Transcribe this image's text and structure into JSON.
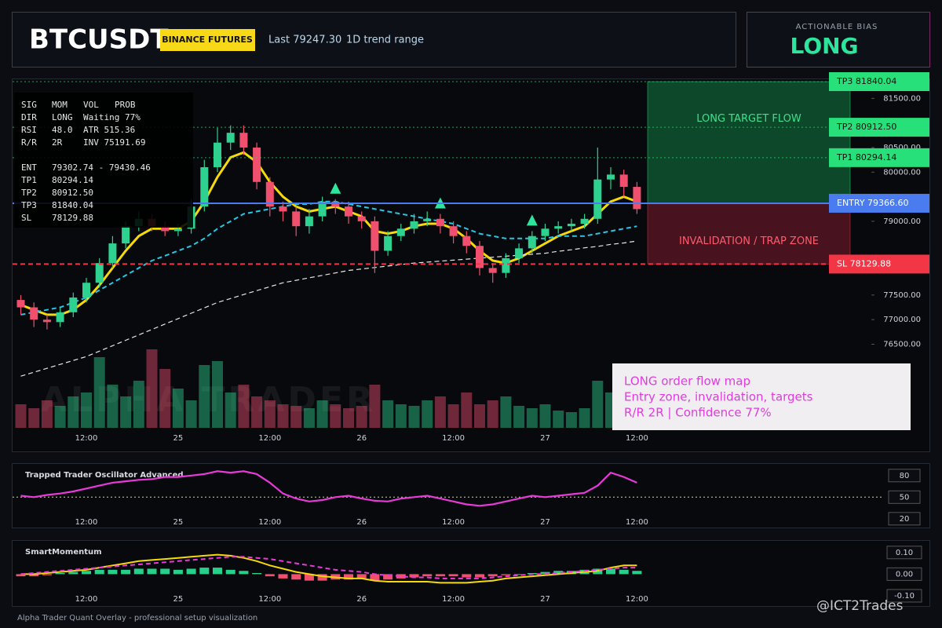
{
  "header": {
    "symbol": "BTCUSDT",
    "exchange": "BINANCE FUTURES",
    "last": "Last 79247.30",
    "range": "1D trend range",
    "bias_label": "ACTIONABLE BIAS",
    "bias": "LONG"
  },
  "info_box": {
    "rows": [
      [
        "SIG",
        "MOM",
        "VOL",
        "PROB"
      ],
      [
        "DIR",
        "LONG",
        "Waiting 77%"
      ],
      [
        "RSI",
        "48.0",
        "ATR 515.36"
      ],
      [
        "R/R",
        "2R",
        "INV 75191.69"
      ],
      [
        "ENT",
        "79302.74 - 79430.46"
      ],
      [
        "TP1",
        "80294.14"
      ],
      [
        "TP2",
        "80912.50"
      ],
      [
        "TP3",
        "81840.04"
      ],
      [
        "SL",
        "78129.88"
      ]
    ]
  },
  "note": {
    "lines": [
      "LONG order flow map",
      "Entry zone, invalidation, targets",
      "R/R 2R | Confidence 77%"
    ]
  },
  "footer": "Alpha Trader Quant Overlay - professional setup visualization",
  "credit": "@ICT2Trades",
  "chart_data": [
    {
      "type": "candlestick",
      "watermark": "ALPHA TRADER",
      "categories": [
        null,
        null,
        null,
        null,
        null,
        "12:00",
        null,
        null,
        null,
        null,
        null,
        null,
        "25",
        null,
        null,
        null,
        null,
        null,
        null,
        "12:00",
        null,
        null,
        null,
        null,
        null,
        null,
        "26",
        null,
        null,
        null,
        null,
        null,
        null,
        "12:00",
        null,
        null,
        null,
        null,
        null,
        null,
        "27",
        null,
        null,
        null,
        null,
        null,
        null,
        "12:00"
      ],
      "open": [
        77400,
        77250,
        77000,
        76950,
        77150,
        77450,
        77750,
        78150,
        78550,
        78900,
        79050,
        78900,
        78800,
        78850,
        79300,
        80100,
        80600,
        80800,
        80500,
        79800,
        79300,
        79200,
        78900,
        79100,
        79400,
        79300,
        79100,
        79000,
        78400,
        78700,
        78850,
        79000,
        79050,
        78900,
        78700,
        78500,
        78050,
        77950,
        78250,
        78450,
        78700,
        78850,
        78900,
        78950,
        79050,
        79850,
        79950,
        79700
      ],
      "high": [
        77500,
        77350,
        77100,
        77250,
        77550,
        77850,
        78250,
        78700,
        79000,
        79200,
        79150,
        79000,
        78950,
        79450,
        80250,
        80900,
        80950,
        80950,
        80600,
        79900,
        79400,
        79300,
        79250,
        79500,
        79450,
        79400,
        79200,
        79100,
        78800,
        78950,
        79150,
        79200,
        79150,
        79000,
        78800,
        78600,
        78150,
        78350,
        78550,
        78800,
        78950,
        79000,
        79050,
        79150,
        80500,
        80100,
        80050,
        79800
      ],
      "low": [
        77100,
        76850,
        76800,
        76850,
        77050,
        77350,
        77650,
        78050,
        78450,
        78800,
        78800,
        78700,
        78700,
        78750,
        79200,
        80000,
        80450,
        80350,
        79650,
        79100,
        79000,
        78700,
        78750,
        79000,
        79150,
        78950,
        78850,
        77950,
        78300,
        78600,
        78750,
        78900,
        78750,
        78550,
        78350,
        77900,
        77750,
        77850,
        78150,
        78350,
        78600,
        78750,
        78800,
        78850,
        78950,
        79650,
        79500,
        79150
      ],
      "close": [
        77250,
        77000,
        76950,
        77150,
        77450,
        77750,
        78150,
        78550,
        78900,
        79050,
        78900,
        78800,
        78850,
        79300,
        80100,
        80600,
        80800,
        80500,
        79800,
        79300,
        79200,
        78900,
        79100,
        79400,
        79300,
        79100,
        79000,
        78400,
        78700,
        78850,
        79000,
        79050,
        78900,
        78700,
        78500,
        78050,
        77950,
        78250,
        78450,
        78700,
        78850,
        78900,
        78950,
        79050,
        79850,
        79950,
        79700,
        79247.3
      ],
      "volume": [
        30,
        25,
        35,
        28,
        40,
        45,
        90,
        55,
        40,
        60,
        100,
        75,
        50,
        35,
        80,
        85,
        45,
        55,
        40,
        35,
        30,
        28,
        25,
        35,
        30,
        25,
        28,
        55,
        35,
        30,
        28,
        35,
        40,
        30,
        45,
        30,
        35,
        40,
        28,
        25,
        30,
        22,
        20,
        25,
        60,
        45,
        35,
        40
      ],
      "up_color": "#2ed18f",
      "down_color": "#f0506e",
      "lines": [
        {
          "color": "#f5d90a",
          "width": 3,
          "style": "solid",
          "values": [
            77300,
            77200,
            77100,
            77100,
            77200,
            77400,
            77700,
            78050,
            78400,
            78700,
            78850,
            78850,
            78850,
            79000,
            79400,
            79900,
            80300,
            80400,
            80200,
            79800,
            79500,
            79300,
            79200,
            79250,
            79300,
            79200,
            79100,
            78800,
            78750,
            78800,
            78900,
            78950,
            78950,
            78850,
            78650,
            78400,
            78200,
            78150,
            78250,
            78400,
            78550,
            78700,
            78800,
            78900,
            79150,
            79400,
            79500,
            79400
          ]
        },
        {
          "color": "#29c5e6",
          "width": 2,
          "style": "dashed",
          "values": [
            77100,
            77150,
            77200,
            77250,
            77350,
            77450,
            77600,
            77750,
            77900,
            78050,
            78200,
            78300,
            78400,
            78500,
            78650,
            78850,
            79000,
            79150,
            79200,
            79250,
            79300,
            79350,
            79350,
            79400,
            79400,
            79350,
            79300,
            79250,
            79200,
            79150,
            79100,
            79050,
            79000,
            78950,
            78850,
            78750,
            78700,
            78650,
            78650,
            78650,
            78650,
            78700,
            78700,
            78700,
            78750,
            78800,
            78850,
            78900
          ]
        },
        {
          "color": "#e6e6e6",
          "width": 1.2,
          "style": "dashed",
          "values": [
            75850,
            75930,
            76010,
            76090,
            76170,
            76250,
            76360,
            76470,
            76580,
            76690,
            76800,
            76910,
            77020,
            77130,
            77240,
            77350,
            77430,
            77510,
            77590,
            77670,
            77750,
            77800,
            77850,
            77900,
            77950,
            78000,
            78030,
            78060,
            78090,
            78120,
            78150,
            78170,
            78190,
            78210,
            78230,
            78250,
            78270,
            78290,
            78310,
            78330,
            78350,
            78390,
            78420,
            78460,
            78490,
            78530,
            78560,
            78600
          ]
        }
      ],
      "buy_signals": [
        24,
        32,
        39
      ],
      "signal_color": "#2ee59d",
      "levels": [
        {
          "label": "TP3 81840.04",
          "value": 81840.04,
          "color": "#27e07a",
          "text_color": "#06140c",
          "style": "dotted"
        },
        {
          "label": "TP2 80912.50",
          "value": 80912.5,
          "color": "#27e07a",
          "text_color": "#06140c",
          "style": "dotted"
        },
        {
          "label": "TP1 80294.14",
          "value": 80294.14,
          "color": "#27e07a",
          "text_color": "#06140c",
          "style": "dotted"
        },
        {
          "label": "ENTRY 79366.60",
          "value": 79366.6,
          "color": "#4a7cf0",
          "text_color": "#ffffff",
          "style": "solid"
        },
        {
          "label": "SL 78129.88",
          "value": 78129.88,
          "color": "#f23645",
          "text_color": "#ffffff",
          "style": "dashed"
        }
      ],
      "zones": [
        {
          "label": "LONG TARGET FLOW",
          "from": 79366.6,
          "to": 81840.04,
          "color": "#1bbf63"
        },
        {
          "label": "INVALIDATION / TRAP ZONE",
          "from": 78129.88,
          "to": 79366.6,
          "color": "#c4283f"
        }
      ],
      "ylim": [
        74800,
        81840
      ],
      "yticks": [
        {
          "value": 76500,
          "label": "76500.00"
        },
        {
          "value": 77000,
          "label": "77000.00"
        },
        {
          "value": 77500,
          "label": "77500.00"
        },
        {
          "value": 79000,
          "label": "79000.00"
        },
        {
          "value": 80000,
          "label": "80000.00"
        },
        {
          "value": 80500,
          "label": "80500.00"
        },
        {
          "value": 81500,
          "label": "81500.00"
        }
      ]
    },
    {
      "type": "line",
      "title": "Trapped Trader Oscillator Advanced",
      "color": "#e83ad8",
      "values": [
        52,
        50,
        53,
        55,
        58,
        62,
        66,
        70,
        72,
        74,
        75,
        78,
        78,
        80,
        82,
        86,
        84,
        86,
        82,
        70,
        55,
        48,
        44,
        46,
        50,
        52,
        48,
        45,
        44,
        48,
        50,
        52,
        48,
        44,
        40,
        38,
        40,
        44,
        48,
        52,
        50,
        52,
        54,
        56,
        66,
        84,
        78,
        70
      ],
      "reference": 50,
      "ylim": [
        10,
        95
      ],
      "yticks": [
        20,
        50,
        80
      ]
    },
    {
      "type": "momentum",
      "title": "SmartMomentum",
      "pos_color": "#27d08a",
      "neg_color": "#f0506e",
      "values": [
        -0.01,
        -0.01,
        -0.005,
        0.005,
        0.01,
        0.015,
        0.02,
        0.02,
        0.02,
        0.025,
        0.025,
        0.025,
        0.02,
        0.025,
        0.03,
        0.03,
        0.02,
        0.015,
        0.005,
        -0.01,
        -0.02,
        -0.025,
        -0.03,
        -0.03,
        -0.025,
        -0.025,
        -0.02,
        -0.03,
        -0.025,
        -0.02,
        -0.015,
        -0.01,
        -0.01,
        -0.01,
        -0.015,
        -0.015,
        -0.01,
        -0.005,
        0,
        0.005,
        0.01,
        0.015,
        0.015,
        0.02,
        0.025,
        0.025,
        0.02,
        0.015
      ],
      "lines": [
        {
          "color": "#f5d90a",
          "style": "solid",
          "values": [
            0,
            0,
            0.005,
            0.01,
            0.015,
            0.02,
            0.03,
            0.04,
            0.05,
            0.06,
            0.065,
            0.07,
            0.075,
            0.08,
            0.085,
            0.09,
            0.085,
            0.075,
            0.06,
            0.04,
            0.025,
            0.01,
            0,
            -0.01,
            -0.015,
            -0.02,
            -0.02,
            -0.03,
            -0.035,
            -0.035,
            -0.035,
            -0.035,
            -0.04,
            -0.04,
            -0.04,
            -0.035,
            -0.03,
            -0.02,
            -0.015,
            -0.01,
            -0.005,
            0,
            0.005,
            0.01,
            0.015,
            0.03,
            0.04,
            0.04
          ]
        },
        {
          "color": "#e83ad8",
          "style": "dashed",
          "values": [
            0,
            0.005,
            0.01,
            0.015,
            0.02,
            0.025,
            0.03,
            0.035,
            0.04,
            0.045,
            0.05,
            0.055,
            0.06,
            0.065,
            0.07,
            0.075,
            0.08,
            0.08,
            0.075,
            0.07,
            0.06,
            0.05,
            0.04,
            0.03,
            0.02,
            0.015,
            0.01,
            0,
            -0.005,
            -0.01,
            -0.015,
            -0.015,
            -0.02,
            -0.02,
            -0.02,
            -0.02,
            -0.015,
            -0.01,
            -0.005,
            0,
            0,
            0.005,
            0.01,
            0.015,
            0.02,
            0.025,
            0.03,
            0.03
          ]
        }
      ],
      "ylim": [
        -0.14,
        0.15
      ],
      "yticks": [
        {
          "value": 0.1,
          "label": "0.10"
        },
        {
          "value": 0,
          "label": "0.00"
        },
        {
          "value": -0.1,
          "label": "-0.10"
        }
      ]
    }
  ]
}
